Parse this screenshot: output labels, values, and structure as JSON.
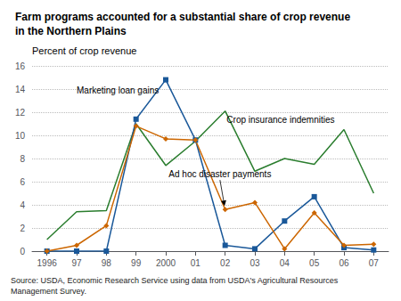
{
  "chart_data": {
    "type": "line",
    "title": "Farm programs accounted for a substantial share of crop revenue\nin the Northern Plains",
    "ylabel": "Percent of crop revenue",
    "source": "Source: USDA, Economic Research Service using data from USDA's Agricultural Resources\nManagement Survey.",
    "categories": [
      "1996",
      "97",
      "98",
      "99",
      "2000",
      "01",
      "02",
      "03",
      "04",
      "05",
      "06",
      "07"
    ],
    "series": [
      {
        "name": "Crop insurance indemnities",
        "color": "#2a7d2e",
        "values": [
          1.0,
          3.4,
          3.5,
          11.0,
          7.4,
          9.5,
          12.1,
          6.9,
          8.0,
          7.5,
          10.5,
          5.0
        ]
      },
      {
        "name": "Marketing loan gains",
        "color": "#1a5899",
        "marker": "square",
        "values": [
          0.0,
          0.0,
          0.0,
          11.4,
          14.8,
          9.6,
          0.5,
          0.2,
          2.6,
          4.7,
          0.3,
          0.1
        ]
      },
      {
        "name": "Ad hoc disaster payments",
        "color": "#cc6600",
        "marker": "diamond",
        "values": [
          0.0,
          0.5,
          2.2,
          10.8,
          9.7,
          9.6,
          3.6,
          4.2,
          0.2,
          3.3,
          0.5,
          0.6
        ]
      }
    ],
    "annotations": [
      "Marketing loan gains",
      "Crop insurance indemnities",
      "Ad hoc disaster payments"
    ],
    "ylim": [
      0,
      16
    ],
    "yticks": [
      0,
      2,
      4,
      6,
      8,
      10,
      12,
      14,
      16
    ],
    "grid": true
  }
}
